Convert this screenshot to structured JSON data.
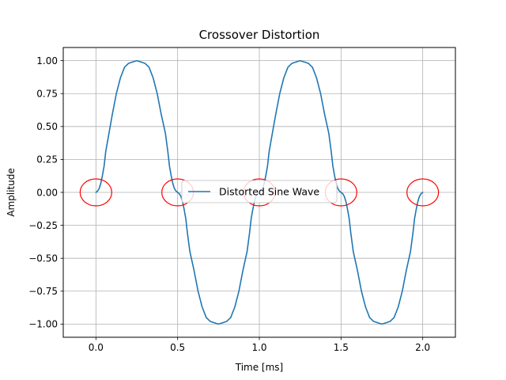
{
  "chart_data": {
    "type": "line",
    "title": "Crossover Distortion",
    "xlabel": "Time [ms]",
    "ylabel": "Amplitude",
    "xlim": [
      -0.2,
      2.2
    ],
    "ylim": [
      -1.1,
      1.1
    ],
    "xticks": [
      0.0,
      0.5,
      1.0,
      1.5,
      2.0
    ],
    "xtick_labels": [
      "0.0",
      "0.5",
      "1.0",
      "1.5",
      "2.0"
    ],
    "yticks": [
      -1.0,
      -0.75,
      -0.5,
      -0.25,
      0.0,
      0.25,
      0.5,
      0.75,
      1.0
    ],
    "ytick_labels": [
      "−1.00",
      "−0.75",
      "−0.50",
      "−0.25",
      "0.00",
      "0.25",
      "0.50",
      "0.75",
      "1.00"
    ],
    "grid": true,
    "legend_position": "center",
    "series": [
      {
        "name": "Distorted Sine Wave",
        "color": "#1f77b4",
        "x": [
          0.0,
          0.01,
          0.02,
          0.03,
          0.04,
          0.05,
          0.06,
          0.08,
          0.1,
          0.125,
          0.15,
          0.175,
          0.2,
          0.225,
          0.25,
          0.275,
          0.3,
          0.325,
          0.35,
          0.375,
          0.4,
          0.425,
          0.44,
          0.45,
          0.46,
          0.47,
          0.48,
          0.49,
          0.5,
          0.51,
          0.52,
          0.53,
          0.54,
          0.55,
          0.56,
          0.575,
          0.6,
          0.625,
          0.65,
          0.675,
          0.7,
          0.725,
          0.75,
          0.775,
          0.8,
          0.825,
          0.85,
          0.875,
          0.9,
          0.925,
          0.94,
          0.95,
          0.96,
          0.97,
          0.98,
          0.99,
          1.0,
          1.01,
          1.02,
          1.03,
          1.04,
          1.05,
          1.06,
          1.08,
          1.1,
          1.125,
          1.15,
          1.175,
          1.2,
          1.225,
          1.25,
          1.275,
          1.3,
          1.325,
          1.35,
          1.375,
          1.4,
          1.425,
          1.44,
          1.45,
          1.46,
          1.47,
          1.48,
          1.49,
          1.5,
          1.51,
          1.52,
          1.53,
          1.54,
          1.55,
          1.56,
          1.575,
          1.6,
          1.625,
          1.65,
          1.675,
          1.7,
          1.725,
          1.75,
          1.775,
          1.8,
          1.825,
          1.85,
          1.875,
          1.9,
          1.925,
          1.94,
          1.95,
          1.96,
          1.97,
          1.98,
          1.99,
          2.0
        ],
        "y": [
          0.0,
          0.01,
          0.03,
          0.07,
          0.13,
          0.2,
          0.31,
          0.45,
          0.59,
          0.75,
          0.87,
          0.95,
          0.98,
          0.99,
          1.0,
          0.99,
          0.98,
          0.95,
          0.87,
          0.75,
          0.59,
          0.45,
          0.31,
          0.2,
          0.13,
          0.07,
          0.03,
          0.01,
          0.0,
          -0.01,
          -0.03,
          -0.07,
          -0.13,
          -0.2,
          -0.31,
          -0.45,
          -0.59,
          -0.75,
          -0.87,
          -0.95,
          -0.98,
          -0.99,
          -1.0,
          -0.99,
          -0.98,
          -0.95,
          -0.87,
          -0.75,
          -0.59,
          -0.45,
          -0.31,
          -0.2,
          -0.13,
          -0.07,
          -0.03,
          -0.01,
          0.0,
          0.01,
          0.03,
          0.07,
          0.13,
          0.2,
          0.31,
          0.45,
          0.59,
          0.75,
          0.87,
          0.95,
          0.98,
          0.99,
          1.0,
          0.99,
          0.98,
          0.95,
          0.87,
          0.75,
          0.59,
          0.45,
          0.31,
          0.2,
          0.13,
          0.07,
          0.03,
          0.01,
          0.0,
          -0.01,
          -0.03,
          -0.07,
          -0.13,
          -0.2,
          -0.31,
          -0.45,
          -0.59,
          -0.75,
          -0.87,
          -0.95,
          -0.98,
          -0.99,
          -1.0,
          -0.99,
          -0.98,
          -0.95,
          -0.87,
          -0.75,
          -0.59,
          -0.45,
          -0.31,
          -0.2,
          -0.13,
          -0.07,
          -0.03,
          -0.01,
          0.0
        ]
      }
    ],
    "markers": {
      "shape": "circle",
      "color": "#ff0000",
      "x": [
        0.0,
        0.5,
        1.0,
        1.5,
        2.0
      ],
      "y": [
        0.0,
        0.0,
        0.0,
        0.0,
        0.0
      ]
    }
  }
}
